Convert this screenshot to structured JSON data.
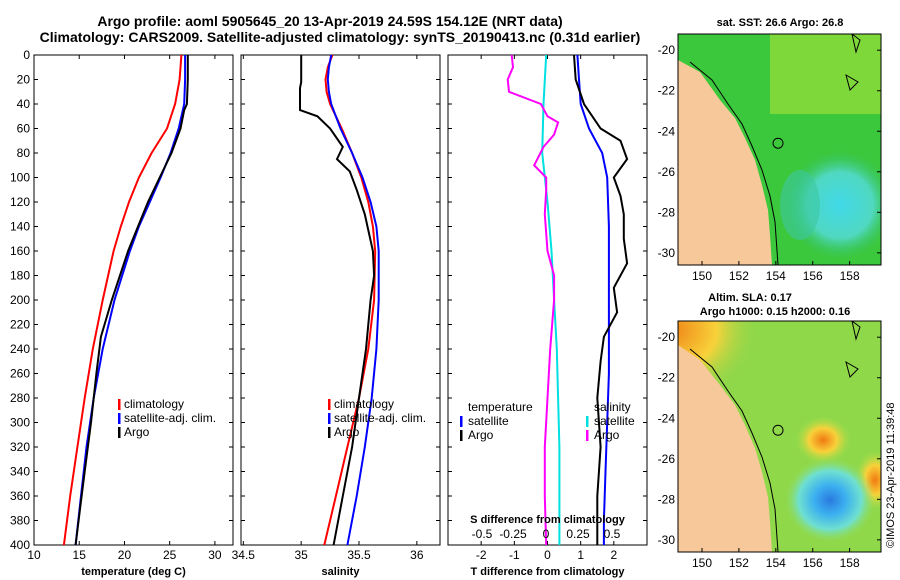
{
  "title_line1": "Argo profile: aoml 5905645_20 13-Apr-2019 24.59S 154.12E (NRT data)",
  "title_line2": "Climatology: CARS2009. Satellite-adjusted climatology: synTS_20190413.nc (0.31d earlier)",
  "side_credit": "©IMOS 23-Apr-2019 11:39:48",
  "colors": {
    "climatology": "#ff0000",
    "satellite": "#0000ff",
    "argo": "#000000",
    "s_diff": "#ff00ff",
    "t_sat_diff": "#00e0e0",
    "land": "#f6c89a"
  },
  "chart_data": [
    {
      "type": "line",
      "name": "temperature-panel",
      "xlabel": "temperature (deg C)",
      "ylabel": "",
      "xlim": [
        10,
        32
      ],
      "ylim": [
        400,
        0
      ],
      "xticks": [
        "10",
        "15",
        "20",
        "25",
        "30"
      ],
      "yticks": [
        "0",
        "20",
        "40",
        "60",
        "80",
        "100",
        "120",
        "140",
        "160",
        "180",
        "200",
        "220",
        "240",
        "260",
        "280",
        "300",
        "320",
        "340",
        "360",
        "380",
        "400"
      ],
      "legend": [
        "climatology",
        "satellite-adj. clim.",
        "Argo"
      ],
      "series": [
        {
          "name": "climatology",
          "depth": [
            0,
            20,
            40,
            60,
            80,
            100,
            120,
            140,
            160,
            200,
            240,
            280,
            320,
            360,
            400
          ],
          "values": [
            26.3,
            26.1,
            25.6,
            24.7,
            23.0,
            21.6,
            20.5,
            19.6,
            18.8,
            17.6,
            16.5,
            15.6,
            14.8,
            14.0,
            13.3
          ]
        },
        {
          "name": "satellite",
          "depth": [
            0,
            20,
            40,
            60,
            80,
            100,
            120,
            140,
            160,
            200,
            240,
            280,
            320,
            360,
            400
          ],
          "values": [
            26.7,
            26.7,
            26.6,
            26.0,
            25.1,
            24.0,
            22.8,
            21.6,
            20.6,
            18.9,
            17.6,
            16.6,
            15.8,
            15.2,
            14.6
          ]
        },
        {
          "name": "Argo",
          "depth": [
            0,
            20,
            40,
            45,
            60,
            80,
            100,
            120,
            140,
            160,
            200,
            230,
            260,
            300,
            340,
            370,
            400
          ],
          "values": [
            27.0,
            27.0,
            26.9,
            26.6,
            26.2,
            25.2,
            23.9,
            22.6,
            21.5,
            20.4,
            18.6,
            17.4,
            16.9,
            16.3,
            15.6,
            15.1,
            14.6
          ]
        }
      ]
    },
    {
      "type": "line",
      "name": "salinity-panel",
      "xlabel": "salinity",
      "xlim": [
        34.48,
        36.2
      ],
      "ylim": [
        400,
        0
      ],
      "xticks": [
        "34.5",
        "35",
        "35.5",
        "36"
      ],
      "legend": [
        "climatology",
        "satellite-adj. clim.",
        "Argo"
      ],
      "series": [
        {
          "name": "climatology",
          "depth": [
            0,
            10,
            20,
            30,
            40,
            60,
            80,
            100,
            120,
            140,
            160,
            200,
            240,
            280,
            320,
            360,
            400
          ],
          "values": [
            35.27,
            35.23,
            35.21,
            35.22,
            35.25,
            35.35,
            35.44,
            35.52,
            35.58,
            35.62,
            35.64,
            35.63,
            35.58,
            35.5,
            35.4,
            35.3,
            35.2
          ]
        },
        {
          "name": "satellite",
          "depth": [
            0,
            10,
            20,
            30,
            40,
            60,
            80,
            100,
            120,
            140,
            160,
            200,
            240,
            280,
            320,
            360,
            400
          ],
          "values": [
            35.26,
            35.24,
            35.23,
            35.24,
            35.26,
            35.34,
            35.44,
            35.53,
            35.6,
            35.65,
            35.67,
            35.67,
            35.65,
            35.61,
            35.55,
            35.48,
            35.4
          ]
        },
        {
          "name": "Argo",
          "depth": [
            0,
            22,
            27,
            45,
            50,
            60,
            75,
            85,
            95,
            110,
            130,
            160,
            180,
            200,
            240,
            280,
            320,
            360,
            400
          ],
          "values": [
            35.0,
            35.0,
            34.99,
            34.99,
            35.14,
            35.25,
            35.36,
            35.31,
            35.42,
            35.48,
            35.55,
            35.62,
            35.63,
            35.6,
            35.56,
            35.5,
            35.44,
            35.36,
            35.28
          ]
        }
      ]
    },
    {
      "type": "line",
      "name": "difference-panel",
      "xlabel": "T difference from climatology",
      "xlabel2": "S difference from climatology",
      "xlim": [
        -3,
        3
      ],
      "ylim": [
        400,
        0
      ],
      "xticks": [
        "-2",
        "-1",
        "0",
        "1",
        "2"
      ],
      "xticks_s": [
        "-0.5",
        "-0.25",
        "0",
        "0.25",
        "0.5"
      ],
      "legend": {
        "temperature_header": "temperature",
        "salinity_header": "salinity",
        "t_items": [
          "satellite",
          "Argo"
        ],
        "s_items": [
          "satellite",
          "Argo"
        ]
      },
      "series": [
        {
          "name": "T satellite",
          "depth": [
            0,
            20,
            40,
            60,
            80,
            100,
            140,
            180,
            220,
            260,
            300,
            340,
            380,
            400
          ],
          "values": [
            0.9,
            0.95,
            1.0,
            1.25,
            1.65,
            1.8,
            1.85,
            1.85,
            1.85,
            1.85,
            1.8,
            1.75,
            1.7,
            1.7
          ]
        },
        {
          "name": "T Argo",
          "depth": [
            0,
            20,
            40,
            60,
            70,
            85,
            100,
            115,
            130,
            150,
            170,
            190,
            210,
            230,
            250,
            280,
            320,
            360,
            400
          ],
          "values": [
            0.8,
            0.85,
            1.1,
            1.6,
            2.2,
            2.4,
            2.0,
            2.2,
            2.3,
            2.3,
            2.4,
            2.0,
            2.1,
            1.7,
            1.6,
            1.5,
            1.6,
            1.5,
            1.5
          ]
        },
        {
          "name": "S satellite",
          "depth": [
            0,
            40,
            80,
            120,
            160,
            200,
            240,
            280,
            320,
            360,
            400
          ],
          "values": [
            -0.01,
            -0.03,
            -0.04,
            0.0,
            0.03,
            0.05,
            0.07,
            0.08,
            0.09,
            0.09,
            0.09
          ]
        },
        {
          "name": "S Argo",
          "depth": [
            0,
            10,
            20,
            30,
            40,
            50,
            55,
            65,
            75,
            90,
            100,
            110,
            130,
            160,
            180,
            200,
            240,
            280,
            320,
            360,
            400
          ],
          "values": [
            -0.27,
            -0.26,
            -0.3,
            -0.29,
            -0.05,
            0.0,
            0.08,
            0.05,
            -0.03,
            -0.1,
            -0.01,
            -0.01,
            -0.02,
            0.0,
            0.05,
            0.05,
            0.02,
            0.0,
            -0.02,
            -0.02,
            -0.01
          ]
        }
      ]
    },
    {
      "type": "heatmap",
      "name": "sst-map",
      "title": "sat. SST: 26.6 Argo: 26.8",
      "xticks": [
        "150",
        "152",
        "154",
        "156",
        "158"
      ],
      "yticks": [
        "-20",
        "-22",
        "-24",
        "-26",
        "-28",
        "-30"
      ],
      "xlim": [
        148.7,
        159.7
      ],
      "ylim": [
        -30.6,
        -19.2
      ],
      "marker": [
        154.12,
        -24.59
      ]
    },
    {
      "type": "heatmap",
      "name": "sla-map",
      "title": "Altim. SLA: 0.17",
      "subtitle": "Argo h1000: 0.15 h2000: 0.16",
      "xticks": [
        "150",
        "152",
        "154",
        "156",
        "158"
      ],
      "yticks": [
        "-20",
        "-22",
        "-24",
        "-26",
        "-28",
        "-30"
      ],
      "xlim": [
        148.7,
        159.7
      ],
      "ylim": [
        -30.6,
        -19.2
      ],
      "marker": [
        154.12,
        -24.59
      ]
    }
  ]
}
